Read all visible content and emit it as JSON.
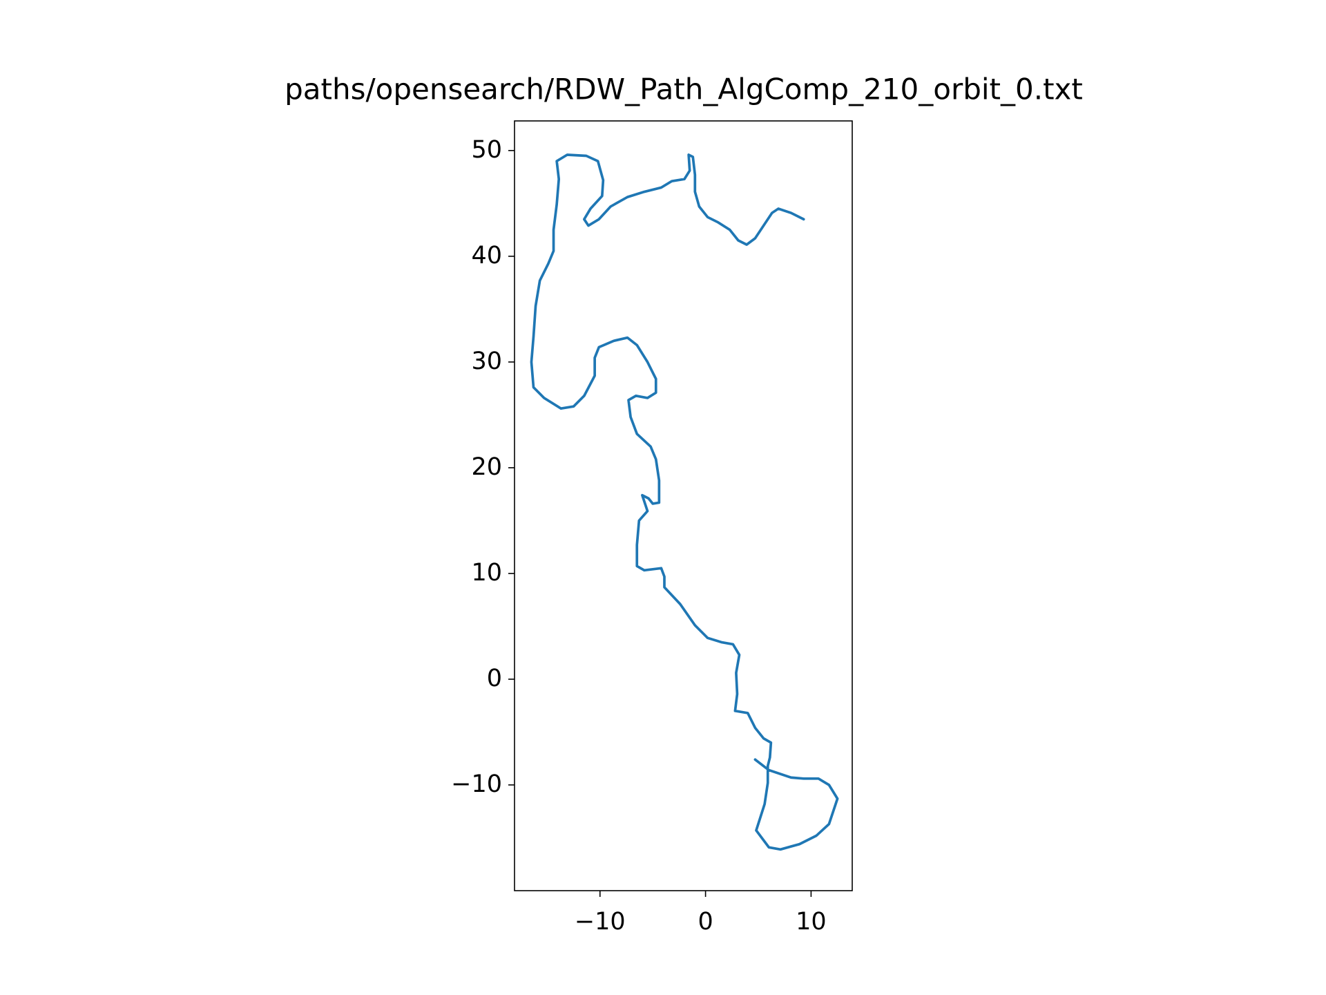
{
  "chart_data": {
    "type": "line",
    "title": "paths/opensearch/RDW_Path_AlgComp_210_orbit_0.txt",
    "xlim": [
      -18.1,
      13.9
    ],
    "ylim": [
      -20.0,
      52.8
    ],
    "xticks": [
      {
        "value": -10,
        "label": "−10"
      },
      0,
      10
    ],
    "yticks": [
      {
        "value": -10,
        "label": "−10"
      },
      0,
      10,
      20,
      30,
      40,
      50
    ],
    "series": [
      {
        "color": "#1f77b4",
        "x": [
          9.3,
          8.1,
          6.9,
          6.3,
          5.5,
          4.7,
          3.9,
          3.1,
          2.3,
          1.2,
          0.2,
          -0.6,
          -1.0,
          -1.0,
          -1.2,
          -1.6,
          -1.5,
          -2.0,
          -3.2,
          -4.2,
          -5.8,
          -7.4,
          -9.0,
          -10.1,
          -11.1,
          -11.5,
          -10.9,
          -9.8,
          -9.7,
          -10.2,
          -11.3,
          -13.1,
          -14.1,
          -13.9,
          -14.1,
          -14.4,
          -14.4,
          -14.9,
          -15.7,
          -16.1,
          -16.3,
          -16.5,
          -16.3,
          -15.3,
          -13.7,
          -12.5,
          -11.5,
          -10.5,
          -10.5,
          -10.1,
          -8.7,
          -7.4,
          -6.5,
          -5.5,
          -4.7,
          -4.7,
          -5.5,
          -6.6,
          -7.3,
          -7.1,
          -6.5,
          -5.2,
          -4.7,
          -4.4,
          -4.4,
          -5.0,
          -5.4,
          -6.0,
          -5.5,
          -6.3,
          -6.5,
          -6.5,
          -5.8,
          -4.2,
          -3.9,
          -3.9,
          -2.4,
          -1.0,
          0.2,
          1.5,
          2.6,
          3.2,
          2.9,
          3.0,
          2.8,
          4.0,
          4.7,
          5.5,
          6.2,
          6.1,
          5.9,
          5.9,
          5.6,
          4.8,
          6.0,
          7.1,
          8.9,
          10.5,
          11.7,
          12.5,
          11.7,
          10.7,
          9.3,
          8.1,
          6.0,
          4.7
        ],
        "values": [
          43.5,
          44.1,
          44.5,
          44.1,
          42.9,
          41.7,
          41.1,
          41.5,
          42.5,
          43.2,
          43.7,
          44.7,
          46.1,
          47.7,
          49.4,
          49.6,
          48.1,
          47.3,
          47.1,
          46.5,
          46.1,
          45.6,
          44.7,
          43.5,
          42.9,
          43.5,
          44.5,
          45.7,
          47.2,
          49.0,
          49.5,
          49.6,
          49.0,
          47.3,
          44.9,
          42.5,
          40.5,
          39.3,
          37.7,
          35.3,
          32.4,
          30.0,
          27.6,
          26.6,
          25.6,
          25.8,
          26.8,
          28.7,
          30.4,
          31.4,
          32.0,
          32.3,
          31.6,
          30.0,
          28.4,
          27.1,
          26.6,
          26.8,
          26.4,
          24.8,
          23.2,
          22.0,
          20.8,
          18.8,
          16.7,
          16.6,
          17.1,
          17.4,
          15.9,
          15.0,
          12.7,
          10.7,
          10.3,
          10.5,
          9.7,
          8.7,
          7.1,
          5.1,
          3.9,
          3.5,
          3.3,
          2.3,
          0.6,
          -1.4,
          -3.0,
          -3.2,
          -4.6,
          -5.6,
          -6.0,
          -7.4,
          -8.2,
          -9.8,
          -11.8,
          -14.3,
          -15.9,
          -16.1,
          -15.6,
          -14.8,
          -13.7,
          -11.3,
          -10.0,
          -9.4,
          -9.4,
          -9.3,
          -8.6,
          -7.6
        ]
      }
    ]
  }
}
